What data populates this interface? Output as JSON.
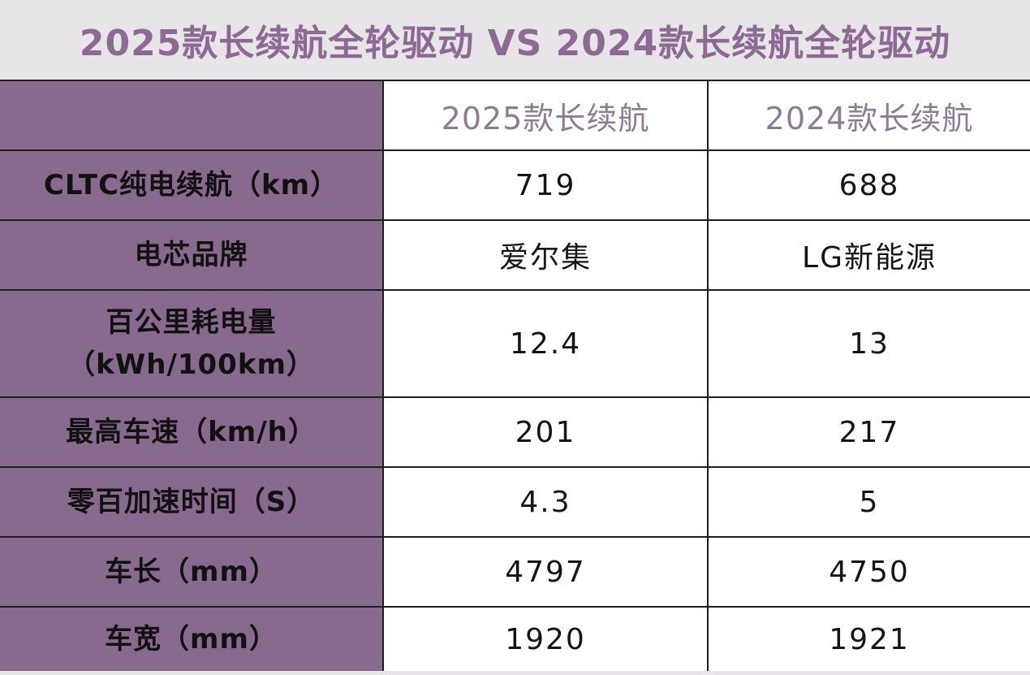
{
  "title": "2025款长续航全轮驱动 VS 2024款长续航全轮驱动",
  "header": {
    "corner": "",
    "col1": "2025款长续航",
    "col2": "2024款长续航"
  },
  "rows": [
    {
      "label": "CLTC纯电续航（km）",
      "v2025": "719",
      "v2024": "688"
    },
    {
      "label": "电芯品牌",
      "v2025": "爱尔集",
      "v2024": "LG新能源"
    },
    {
      "label_line1": "百公里耗电量",
      "label_line2": "（kWh/100km）",
      "v2025": "12.4",
      "v2024": "13"
    },
    {
      "label": "最高车速（km/h）",
      "v2025": "201",
      "v2024": "217"
    },
    {
      "label": "零百加速时间（S）",
      "v2025": "4.3",
      "v2024": "5"
    },
    {
      "label": "车长（mm）",
      "v2025": "4797",
      "v2024": "4750"
    },
    {
      "label": "车宽（mm）",
      "v2025": "1920",
      "v2024": "1921"
    }
  ],
  "colors": {
    "label_bg": "#876a8e",
    "title_text": "#8c6a94",
    "header_text": "#8f7a97",
    "page_bg": "#e8e5e8"
  }
}
